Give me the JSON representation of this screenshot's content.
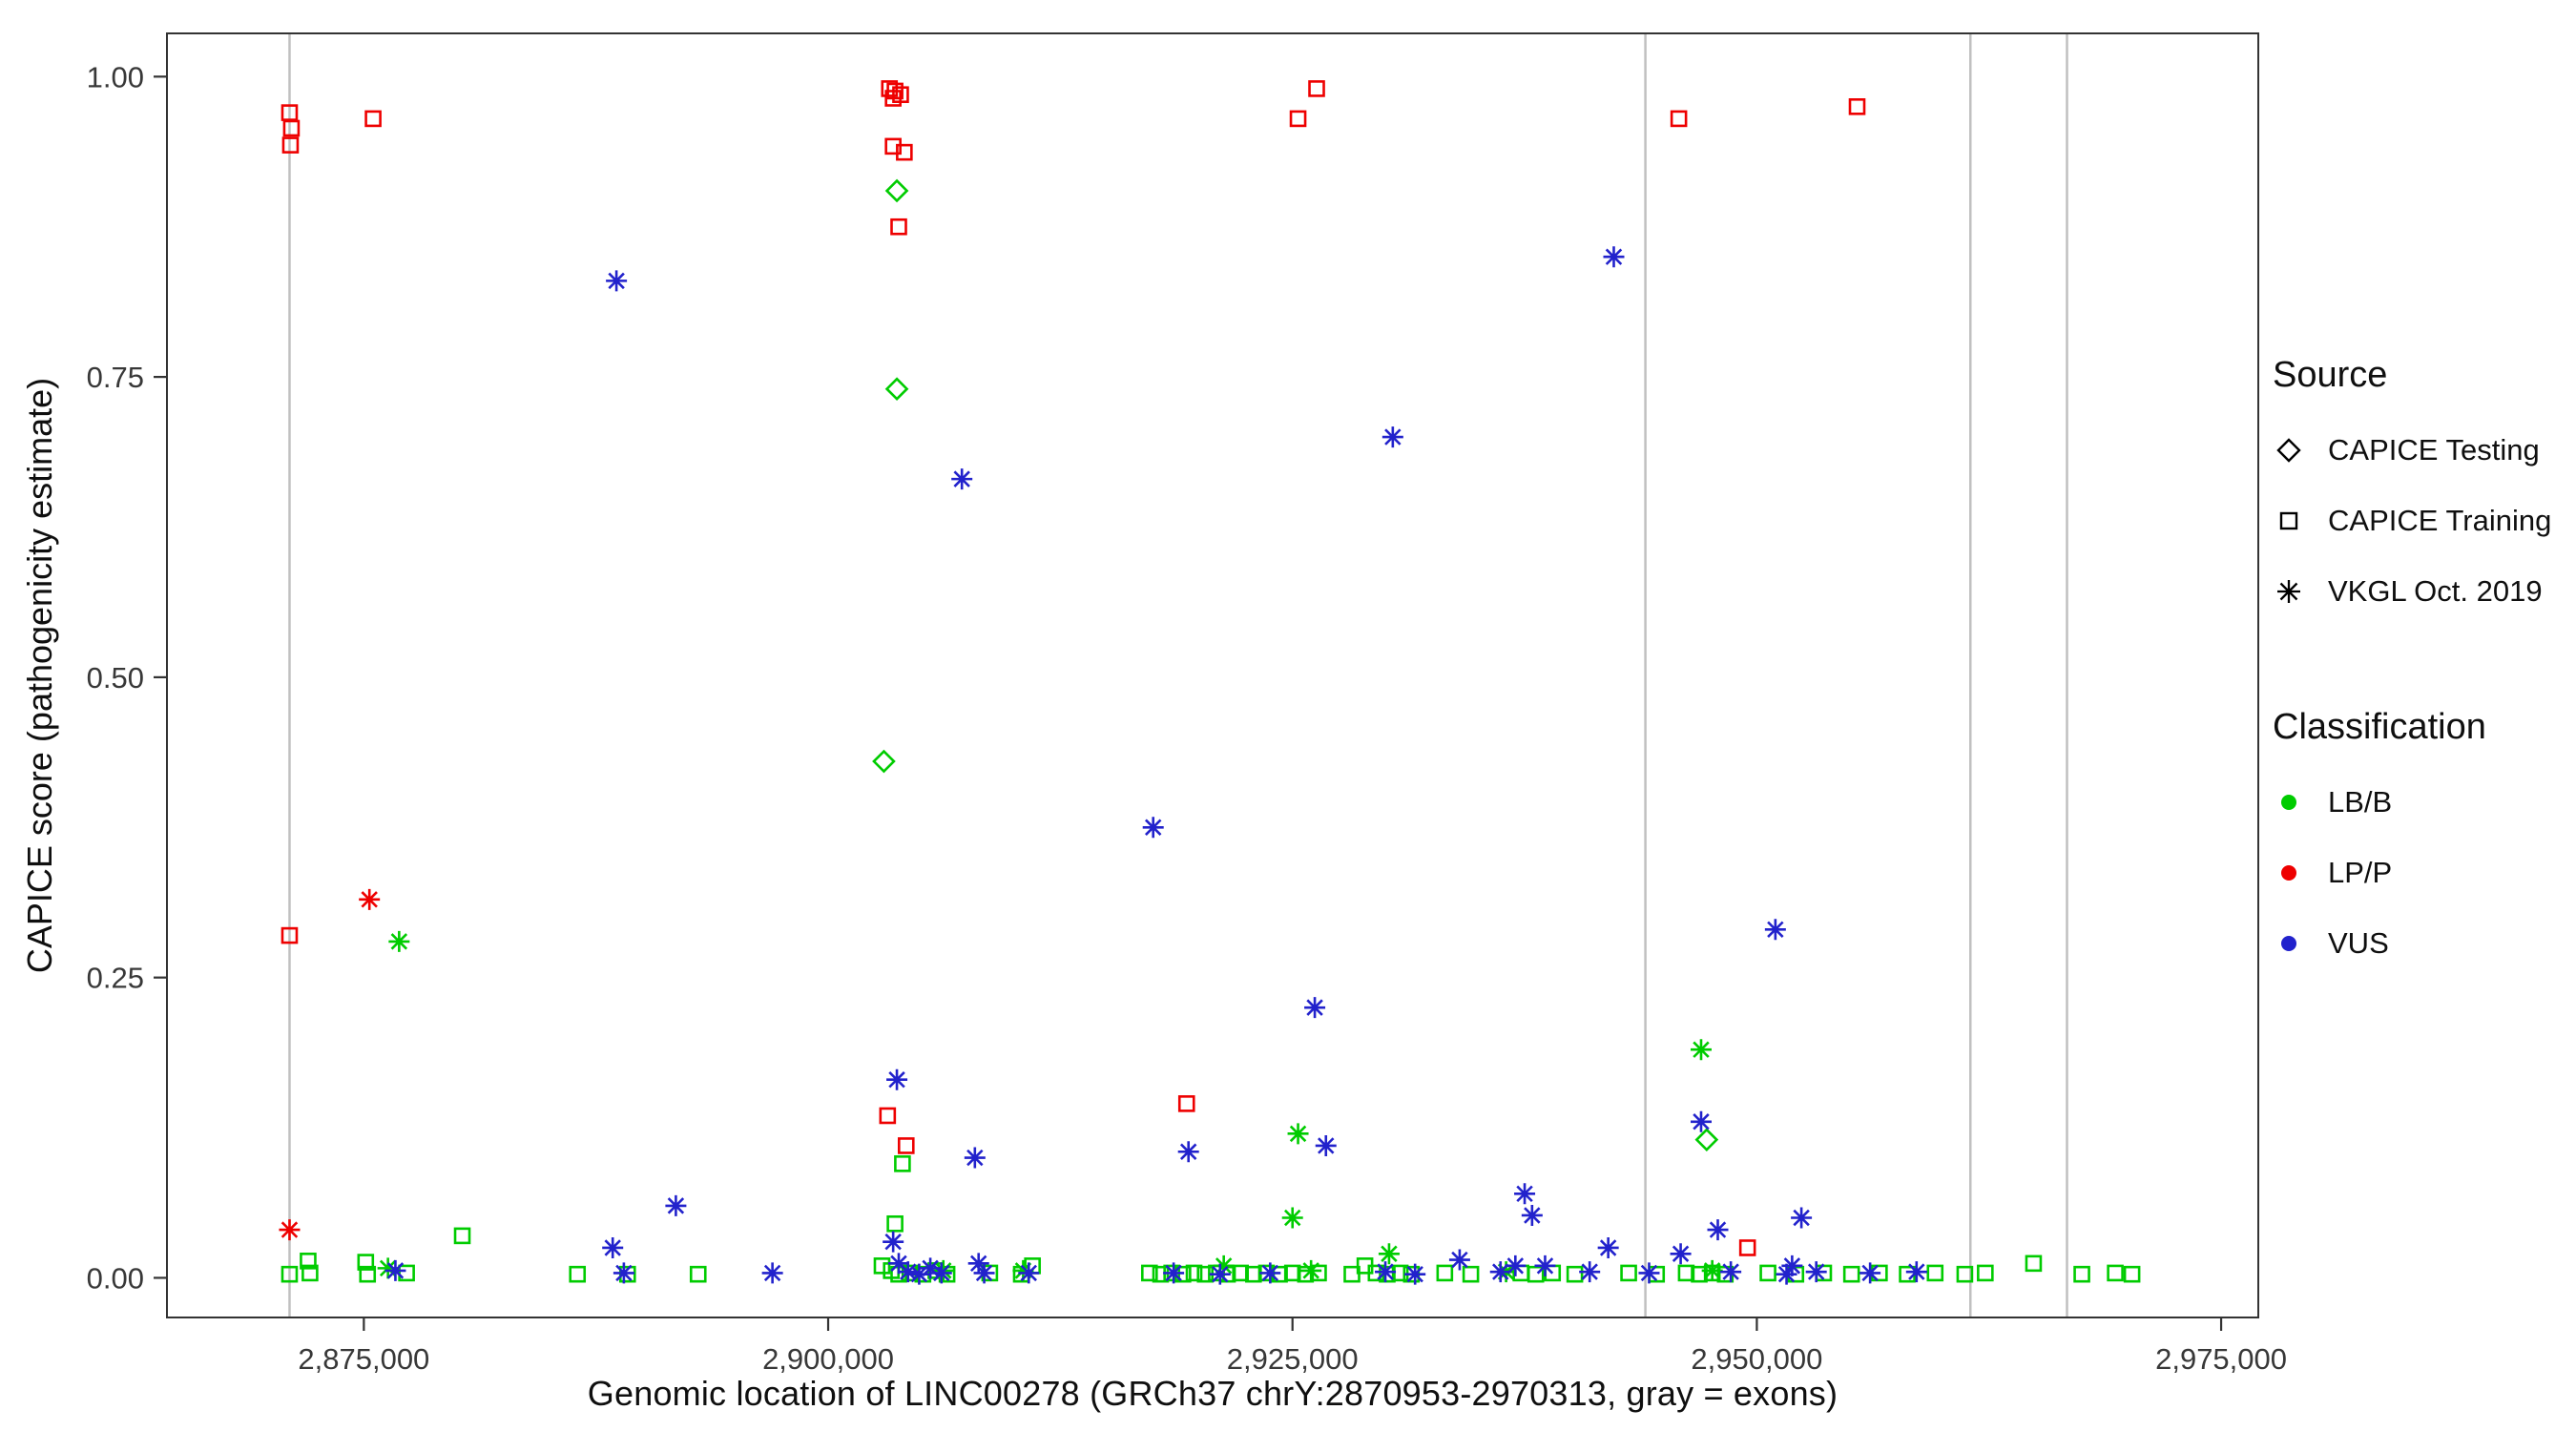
{
  "figure": {
    "xlabel": "Genomic location of LINC00278 (GRCh37 chrY:2870953-2970313, gray = exons)",
    "ylabel": "CAPICE score (pathogenicity estimate)"
  },
  "legend": {
    "source_title": "Source",
    "source_items": [
      {
        "label": "CAPICE Testing",
        "shape": "diamond"
      },
      {
        "label": "CAPICE Training",
        "shape": "square"
      },
      {
        "label": "VKGL Oct. 2019",
        "shape": "asterisk"
      }
    ],
    "class_title": "Classification",
    "class_items": [
      {
        "label": "LB/B",
        "color": "#00CC00"
      },
      {
        "label": "LP/P",
        "color": "#EE0000"
      },
      {
        "label": "VUS",
        "color": "#2222CC"
      }
    ]
  },
  "chart_data": {
    "type": "scatter",
    "title": "",
    "xlabel": "Genomic location of LINC00278 (GRCh37 chrY:2870953-2970313, gray = exons)",
    "ylabel": "CAPICE score (pathogenicity estimate)",
    "xlim": [
      2864400,
      2977000
    ],
    "ylim": [
      -0.033,
      1.036
    ],
    "x_ticks": [
      2875000,
      2900000,
      2925000,
      2950000,
      2975000
    ],
    "x_tick_labels": [
      "2,875,000",
      "2,900,000",
      "2,925,000",
      "2,950,000",
      "2,975,000"
    ],
    "y_ticks": [
      0.0,
      0.25,
      0.5,
      0.75,
      1.0
    ],
    "y_tick_labels": [
      "0.00",
      "0.25",
      "0.50",
      "0.75",
      "1.00"
    ],
    "grid": false,
    "legend_position": "right",
    "exon_lines_x": [
      2871000,
      2944000,
      2961500,
      2966700
    ],
    "exon_color": "#C0C0C0",
    "shape_by_source": {
      "testing": "diamond",
      "training": "square",
      "vkgl": "asterisk"
    },
    "source_labels": {
      "testing": "CAPICE Testing",
      "training": "CAPICE Training",
      "vkgl": "VKGL Oct. 2019"
    },
    "color_by_class": {
      "LB/B": "#00CC00",
      "LP/P": "#EE0000",
      "VUS": "#2222CC"
    },
    "point_format": [
      "x",
      "y",
      "source",
      "classification"
    ],
    "points": [
      [
        2871000,
        0.97,
        "training",
        "LP/P"
      ],
      [
        2871100,
        0.957,
        "training",
        "LP/P"
      ],
      [
        2871050,
        0.943,
        "training",
        "LP/P"
      ],
      [
        2875500,
        0.965,
        "training",
        "LP/P"
      ],
      [
        2903300,
        0.99,
        "training",
        "LP/P"
      ],
      [
        2903600,
        0.988,
        "training",
        "LP/P"
      ],
      [
        2903900,
        0.985,
        "training",
        "LP/P"
      ],
      [
        2903500,
        0.982,
        "training",
        "LP/P"
      ],
      [
        2903500,
        0.942,
        "training",
        "LP/P"
      ],
      [
        2904100,
        0.937,
        "training",
        "LP/P"
      ],
      [
        2903800,
        0.875,
        "training",
        "LP/P"
      ],
      [
        2925300,
        0.965,
        "training",
        "LP/P"
      ],
      [
        2926300,
        0.99,
        "training",
        "LP/P"
      ],
      [
        2945800,
        0.965,
        "training",
        "LP/P"
      ],
      [
        2955400,
        0.975,
        "training",
        "LP/P"
      ],
      [
        2871000,
        0.285,
        "training",
        "LP/P"
      ],
      [
        2903200,
        0.135,
        "training",
        "LP/P"
      ],
      [
        2904200,
        0.11,
        "training",
        "LP/P"
      ],
      [
        2919300,
        0.145,
        "training",
        "LP/P"
      ],
      [
        2949500,
        0.025,
        "training",
        "LP/P"
      ],
      [
        2875300,
        0.315,
        "vkgl",
        "LP/P"
      ],
      [
        2871000,
        0.04,
        "vkgl",
        "LP/P"
      ],
      [
        2903700,
        0.905,
        "testing",
        "LB/B"
      ],
      [
        2903700,
        0.74,
        "testing",
        "LB/B"
      ],
      [
        2903000,
        0.43,
        "testing",
        "LB/B"
      ],
      [
        2947300,
        0.115,
        "testing",
        "LB/B"
      ],
      [
        2876900,
        0.28,
        "vkgl",
        "LB/B"
      ],
      [
        2947000,
        0.19,
        "vkgl",
        "LB/B"
      ],
      [
        2925300,
        0.12,
        "vkgl",
        "LB/B"
      ],
      [
        2925000,
        0.05,
        "vkgl",
        "LB/B"
      ],
      [
        2930200,
        0.02,
        "vkgl",
        "LB/B"
      ],
      [
        2876300,
        0.008,
        "vkgl",
        "LB/B"
      ],
      [
        2906200,
        0.006,
        "vkgl",
        "LB/B"
      ],
      [
        2910500,
        0.006,
        "vkgl",
        "LB/B"
      ],
      [
        2921300,
        0.01,
        "vkgl",
        "LB/B"
      ],
      [
        2926000,
        0.006,
        "vkgl",
        "LB/B"
      ],
      [
        2936500,
        0.005,
        "vkgl",
        "LB/B"
      ],
      [
        2947600,
        0.006,
        "vkgl",
        "LB/B"
      ],
      [
        2904000,
        0.095,
        "training",
        "LB/B"
      ],
      [
        2903600,
        0.045,
        "training",
        "LB/B"
      ],
      [
        2880300,
        0.035,
        "training",
        "LB/B"
      ],
      [
        2871000,
        0.003,
        "training",
        "LB/B"
      ],
      [
        2872000,
        0.014,
        "training",
        "LB/B"
      ],
      [
        2872100,
        0.004,
        "training",
        "LB/B"
      ],
      [
        2875100,
        0.013,
        "training",
        "LB/B"
      ],
      [
        2875200,
        0.003,
        "training",
        "LB/B"
      ],
      [
        2877300,
        0.004,
        "training",
        "LB/B"
      ],
      [
        2886500,
        0.003,
        "training",
        "LB/B"
      ],
      [
        2889200,
        0.003,
        "training",
        "LB/B"
      ],
      [
        2893000,
        0.003,
        "training",
        "LB/B"
      ],
      [
        2902900,
        0.01,
        "training",
        "LB/B"
      ],
      [
        2903400,
        0.006,
        "training",
        "LB/B"
      ],
      [
        2903800,
        0.003,
        "training",
        "LB/B"
      ],
      [
        2904400,
        0.004,
        "training",
        "LB/B"
      ],
      [
        2905100,
        0.003,
        "training",
        "LB/B"
      ],
      [
        2905800,
        0.006,
        "training",
        "LB/B"
      ],
      [
        2906400,
        0.003,
        "training",
        "LB/B"
      ],
      [
        2908700,
        0.004,
        "training",
        "LB/B"
      ],
      [
        2910400,
        0.003,
        "training",
        "LB/B"
      ],
      [
        2911000,
        0.01,
        "training",
        "LB/B"
      ],
      [
        2917300,
        0.004,
        "training",
        "LB/B"
      ],
      [
        2917900,
        0.003,
        "training",
        "LB/B"
      ],
      [
        2918500,
        0.004,
        "training",
        "LB/B"
      ],
      [
        2919100,
        0.003,
        "training",
        "LB/B"
      ],
      [
        2919700,
        0.004,
        "training",
        "LB/B"
      ],
      [
        2920300,
        0.003,
        "training",
        "LB/B"
      ],
      [
        2920900,
        0.004,
        "training",
        "LB/B"
      ],
      [
        2921500,
        0.003,
        "training",
        "LB/B"
      ],
      [
        2922200,
        0.004,
        "training",
        "LB/B"
      ],
      [
        2922900,
        0.003,
        "training",
        "LB/B"
      ],
      [
        2923600,
        0.004,
        "training",
        "LB/B"
      ],
      [
        2924300,
        0.003,
        "training",
        "LB/B"
      ],
      [
        2925000,
        0.004,
        "training",
        "LB/B"
      ],
      [
        2925700,
        0.003,
        "training",
        "LB/B"
      ],
      [
        2926400,
        0.004,
        "training",
        "LB/B"
      ],
      [
        2928200,
        0.003,
        "training",
        "LB/B"
      ],
      [
        2928900,
        0.01,
        "training",
        "LB/B"
      ],
      [
        2929500,
        0.004,
        "training",
        "LB/B"
      ],
      [
        2930100,
        0.003,
        "training",
        "LB/B"
      ],
      [
        2930800,
        0.004,
        "training",
        "LB/B"
      ],
      [
        2931400,
        0.003,
        "training",
        "LB/B"
      ],
      [
        2933200,
        0.004,
        "training",
        "LB/B"
      ],
      [
        2934600,
        0.003,
        "training",
        "LB/B"
      ],
      [
        2937300,
        0.004,
        "training",
        "LB/B"
      ],
      [
        2938100,
        0.003,
        "training",
        "LB/B"
      ],
      [
        2939000,
        0.004,
        "training",
        "LB/B"
      ],
      [
        2940200,
        0.003,
        "training",
        "LB/B"
      ],
      [
        2943100,
        0.004,
        "training",
        "LB/B"
      ],
      [
        2944600,
        0.003,
        "training",
        "LB/B"
      ],
      [
        2946200,
        0.004,
        "training",
        "LB/B"
      ],
      [
        2946900,
        0.003,
        "training",
        "LB/B"
      ],
      [
        2947600,
        0.004,
        "training",
        "LB/B"
      ],
      [
        2948300,
        0.003,
        "training",
        "LB/B"
      ],
      [
        2950600,
        0.004,
        "training",
        "LB/B"
      ],
      [
        2952100,
        0.003,
        "training",
        "LB/B"
      ],
      [
        2953600,
        0.004,
        "training",
        "LB/B"
      ],
      [
        2955100,
        0.003,
        "training",
        "LB/B"
      ],
      [
        2956600,
        0.004,
        "training",
        "LB/B"
      ],
      [
        2958100,
        0.003,
        "training",
        "LB/B"
      ],
      [
        2959600,
        0.004,
        "training",
        "LB/B"
      ],
      [
        2961200,
        0.003,
        "training",
        "LB/B"
      ],
      [
        2962300,
        0.004,
        "training",
        "LB/B"
      ],
      [
        2964900,
        0.012,
        "training",
        "LB/B"
      ],
      [
        2967500,
        0.003,
        "training",
        "LB/B"
      ],
      [
        2969300,
        0.004,
        "training",
        "LB/B"
      ],
      [
        2970200,
        0.003,
        "training",
        "LB/B"
      ],
      [
        2888600,
        0.83,
        "vkgl",
        "VUS"
      ],
      [
        2907200,
        0.665,
        "vkgl",
        "VUS"
      ],
      [
        2930400,
        0.7,
        "vkgl",
        "VUS"
      ],
      [
        2942300,
        0.85,
        "vkgl",
        "VUS"
      ],
      [
        2917500,
        0.375,
        "vkgl",
        "VUS"
      ],
      [
        2926200,
        0.225,
        "vkgl",
        "VUS"
      ],
      [
        2951000,
        0.29,
        "vkgl",
        "VUS"
      ],
      [
        2903700,
        0.165,
        "vkgl",
        "VUS"
      ],
      [
        2907900,
        0.1,
        "vkgl",
        "VUS"
      ],
      [
        2919400,
        0.105,
        "vkgl",
        "VUS"
      ],
      [
        2926800,
        0.11,
        "vkgl",
        "VUS"
      ],
      [
        2947000,
        0.13,
        "vkgl",
        "VUS"
      ],
      [
        2891800,
        0.06,
        "vkgl",
        "VUS"
      ],
      [
        2937500,
        0.07,
        "vkgl",
        "VUS"
      ],
      [
        2937900,
        0.052,
        "vkgl",
        "VUS"
      ],
      [
        2952400,
        0.05,
        "vkgl",
        "VUS"
      ],
      [
        2947900,
        0.04,
        "vkgl",
        "VUS"
      ],
      [
        2888400,
        0.025,
        "vkgl",
        "VUS"
      ],
      [
        2903500,
        0.03,
        "vkgl",
        "VUS"
      ],
      [
        2934000,
        0.015,
        "vkgl",
        "VUS"
      ],
      [
        2942000,
        0.025,
        "vkgl",
        "VUS"
      ],
      [
        2945900,
        0.02,
        "vkgl",
        "VUS"
      ],
      [
        2937000,
        0.01,
        "vkgl",
        "VUS"
      ],
      [
        2876700,
        0.006,
        "vkgl",
        "VUS"
      ],
      [
        2889000,
        0.004,
        "vkgl",
        "VUS"
      ],
      [
        2897000,
        0.004,
        "vkgl",
        "VUS"
      ],
      [
        2903800,
        0.012,
        "vkgl",
        "VUS"
      ],
      [
        2904300,
        0.005,
        "vkgl",
        "VUS"
      ],
      [
        2904900,
        0.003,
        "vkgl",
        "VUS"
      ],
      [
        2905500,
        0.008,
        "vkgl",
        "VUS"
      ],
      [
        2906100,
        0.004,
        "vkgl",
        "VUS"
      ],
      [
        2908100,
        0.012,
        "vkgl",
        "VUS"
      ],
      [
        2908400,
        0.004,
        "vkgl",
        "VUS"
      ],
      [
        2910800,
        0.004,
        "vkgl",
        "VUS"
      ],
      [
        2918600,
        0.004,
        "vkgl",
        "VUS"
      ],
      [
        2921100,
        0.003,
        "vkgl",
        "VUS"
      ],
      [
        2923800,
        0.004,
        "vkgl",
        "VUS"
      ],
      [
        2930000,
        0.005,
        "vkgl",
        "VUS"
      ],
      [
        2931600,
        0.003,
        "vkgl",
        "VUS"
      ],
      [
        2936200,
        0.005,
        "vkgl",
        "VUS"
      ],
      [
        2938600,
        0.01,
        "vkgl",
        "VUS"
      ],
      [
        2941000,
        0.005,
        "vkgl",
        "VUS"
      ],
      [
        2944200,
        0.004,
        "vkgl",
        "VUS"
      ],
      [
        2948600,
        0.005,
        "vkgl",
        "VUS"
      ],
      [
        2951600,
        0.003,
        "vkgl",
        "VUS"
      ],
      [
        2951900,
        0.01,
        "vkgl",
        "VUS"
      ],
      [
        2953200,
        0.005,
        "vkgl",
        "VUS"
      ],
      [
        2956100,
        0.004,
        "vkgl",
        "VUS"
      ],
      [
        2958600,
        0.005,
        "vkgl",
        "VUS"
      ]
    ]
  }
}
